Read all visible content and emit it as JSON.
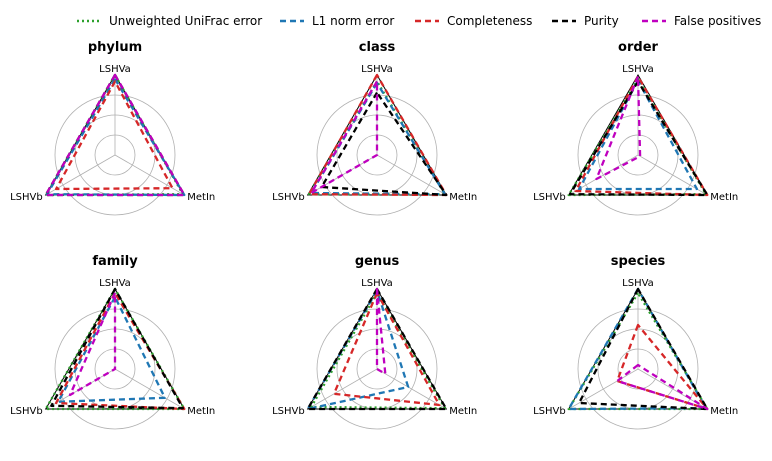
{
  "chart_data": {
    "type": "radar",
    "axes": [
      "LSHVa",
      "LSHVb",
      "MetIn"
    ],
    "grid_levels": [
      0.25,
      0.5,
      0.75,
      1.0
    ],
    "legend": [
      {
        "name": "Unweighted UniFrac error",
        "color": "#2ca02c",
        "dash": "dotted"
      },
      {
        "name": "L1 norm error",
        "color": "#1f77b4",
        "dash": "dashed"
      },
      {
        "name": "Completeness",
        "color": "#d62728",
        "dash": "dashed"
      },
      {
        "name": "Purity",
        "color": "#000000",
        "dash": "dashed"
      },
      {
        "name": "False positives",
        "color": "#bf00bf",
        "dash": "dashed"
      }
    ],
    "panels": [
      {
        "title": "phylum",
        "series": {
          "Unweighted UniFrac error": [
            1.0,
            1.0,
            0.98
          ],
          "L1 norm error": [
            0.95,
            0.98,
            1.0
          ],
          "Completeness": [
            0.92,
            0.85,
            0.83
          ],
          "Purity": [
            1.0,
            1.0,
            1.0
          ],
          "False positives": [
            1.0,
            1.0,
            1.0
          ]
        }
      },
      {
        "title": "class",
        "series": {
          "Unweighted UniFrac error": [
            0.92,
            0.98,
            0.98
          ],
          "L1 norm error": [
            0.9,
            0.95,
            0.98
          ],
          "Completeness": [
            1.0,
            0.98,
            1.0
          ],
          "Purity": [
            0.78,
            0.8,
            1.0
          ],
          "False positives": [
            0.92,
            0.95,
            0.0
          ]
        }
      },
      {
        "title": "order",
        "series": {
          "Unweighted UniFrac error": [
            0.95,
            1.0,
            0.98
          ],
          "L1 norm error": [
            0.93,
            0.85,
            0.85
          ],
          "Completeness": [
            0.98,
            0.9,
            1.0
          ],
          "Purity": [
            0.92,
            0.98,
            1.0
          ],
          "False positives": [
            0.98,
            0.6,
            0.03
          ]
        }
      },
      {
        "title": "family",
        "series": {
          "Unweighted UniFrac error": [
            1.0,
            1.0,
            1.0
          ],
          "L1 norm error": [
            0.9,
            0.82,
            0.72
          ],
          "Completeness": [
            0.95,
            0.85,
            1.0
          ],
          "Purity": [
            1.0,
            0.92,
            0.98
          ],
          "False positives": [
            0.95,
            0.65,
            0.0
          ]
        }
      },
      {
        "title": "genus",
        "series": {
          "Unweighted UniFrac error": [
            0.95,
            0.95,
            0.98
          ],
          "L1 norm error": [
            0.98,
            1.0,
            0.45
          ],
          "Completeness": [
            0.95,
            0.62,
            0.9
          ],
          "Purity": [
            1.0,
            1.0,
            1.0
          ],
          "False positives": [
            1.0,
            0.0,
            0.12
          ]
        }
      },
      {
        "title": "species",
        "series": {
          "Unweighted UniFrac error": [
            0.95,
            1.0,
            1.0
          ],
          "L1 norm error": [
            1.0,
            1.0,
            0.98
          ],
          "Completeness": [
            0.55,
            0.3,
            1.0
          ],
          "Purity": [
            1.0,
            0.85,
            1.0
          ],
          "False positives": [
            0.05,
            0.3,
            1.0
          ]
        }
      }
    ]
  }
}
